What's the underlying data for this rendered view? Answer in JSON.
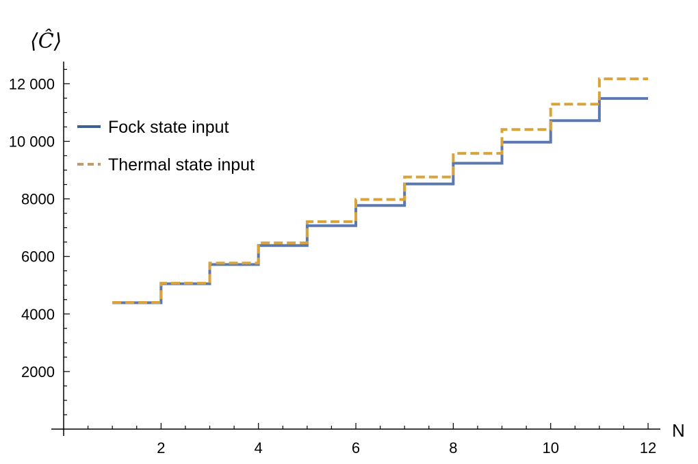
{
  "chart_data": {
    "type": "line",
    "step": true,
    "title": "",
    "xlabel": "N",
    "ylabel": "⟨Ĉ⟩",
    "xlim": [
      0,
      12
    ],
    "ylim": [
      0,
      12500
    ],
    "x_ticks": [
      2,
      4,
      6,
      8,
      10,
      12
    ],
    "x_tick_labels": [
      "2",
      "4",
      "6",
      "8",
      "10",
      "12"
    ],
    "y_ticks": [
      2000,
      4000,
      6000,
      8000,
      10000,
      12000
    ],
    "y_tick_labels": [
      "2000",
      "4000",
      "6000",
      "8000",
      "10 000",
      "12 000"
    ],
    "grid": false,
    "legend_position": "top-left",
    "series": [
      {
        "name": "Fock state input",
        "color": "#5b79b0",
        "style": "solid",
        "x": [
          1,
          2,
          3,
          4,
          5,
          6,
          7,
          8,
          9,
          10,
          11
        ],
        "values": [
          4390,
          5050,
          5720,
          6380,
          7070,
          7770,
          8520,
          9240,
          9970,
          10720,
          11490
        ]
      },
      {
        "name": "Thermal state input",
        "color": "#d9a33b",
        "style": "dashed",
        "x": [
          1,
          2,
          3,
          4,
          5,
          6,
          7,
          8,
          9,
          10,
          11
        ],
        "values": [
          4400,
          5070,
          5770,
          6470,
          7210,
          7980,
          8760,
          9580,
          10410,
          11290,
          12170
        ]
      }
    ]
  }
}
